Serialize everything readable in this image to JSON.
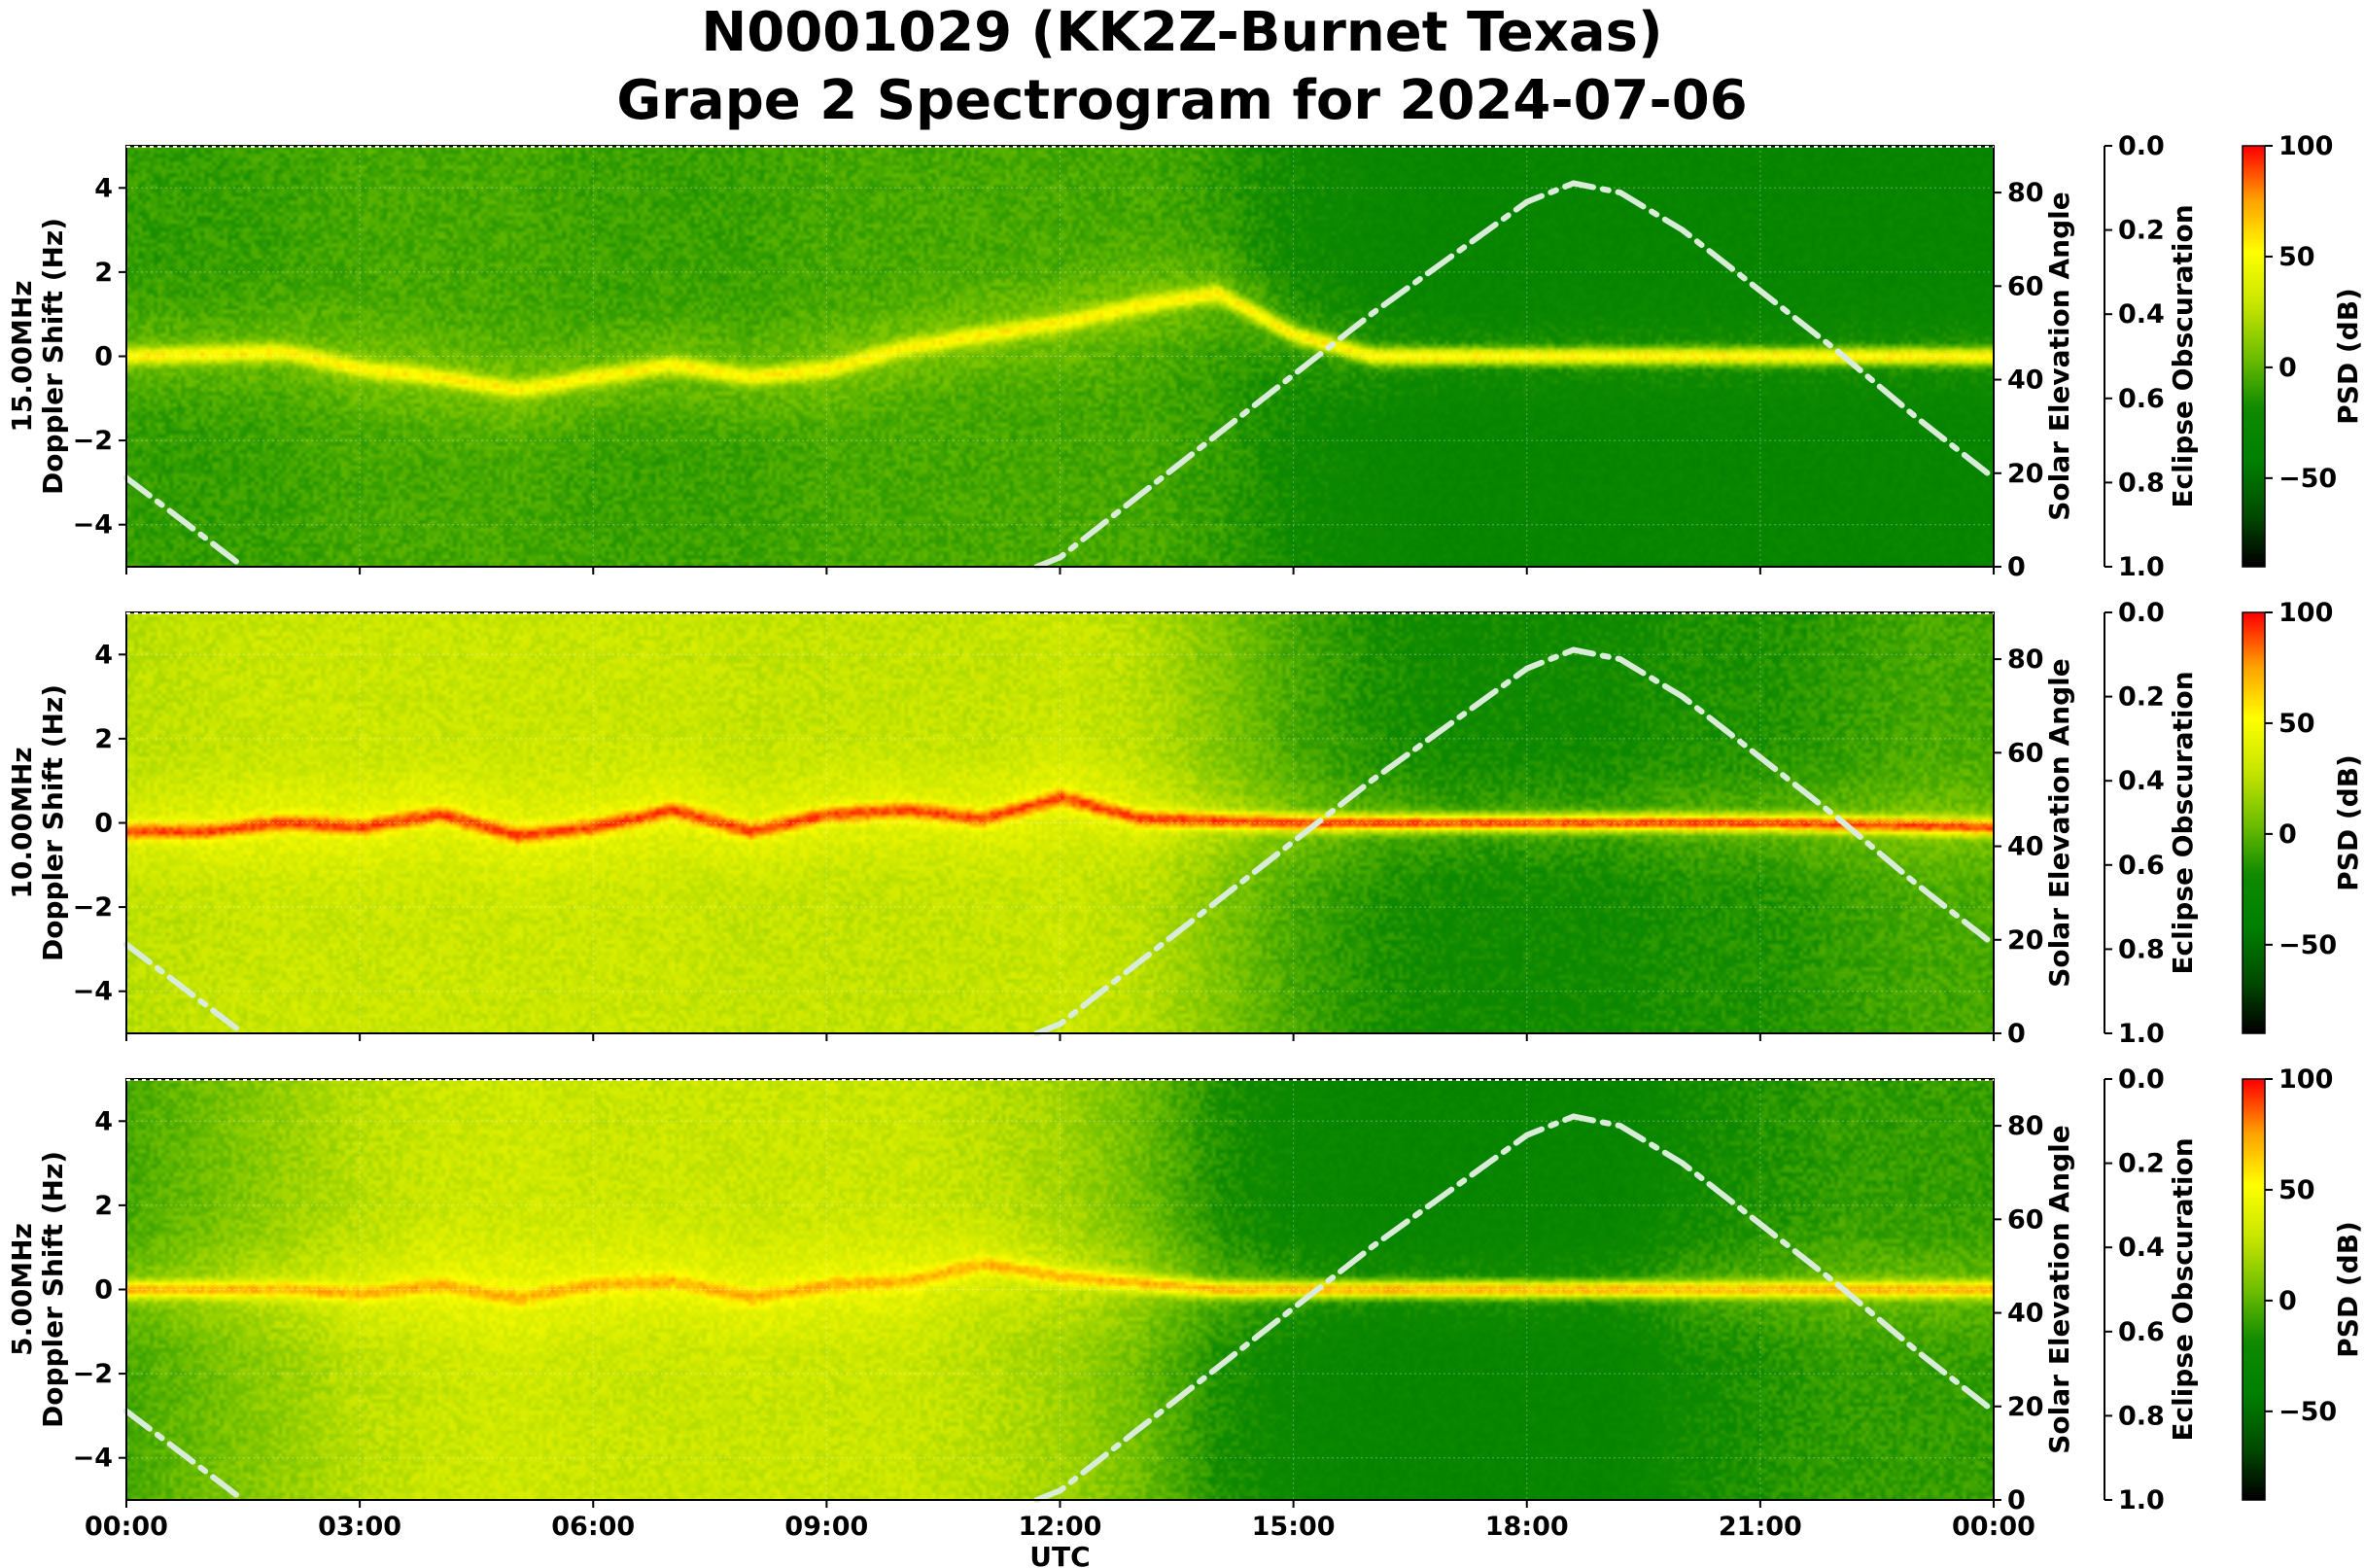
{
  "title_line1": "N0001029 (KK2Z-Burnet Texas)",
  "title_line2": "Grape 2 Spectrogram for 2024-07-06",
  "colors": {
    "psd_colormap": [
      "#000000",
      "#004d00",
      "#008000",
      "#0f8a00",
      "#6fbf00",
      "#c8e600",
      "#ffff00",
      "#ffa000",
      "#ff0000"
    ],
    "sun_curve": "#d8ecd8"
  },
  "chart_data": [
    {
      "type": "heatmap",
      "panel": "15.00MHz",
      "ylabel_line1": "15.00MHz",
      "ylabel_line2": "Doppler Shift (Hz)",
      "xlabel": "UTC",
      "x_ticks": [
        "00:00",
        "03:00",
        "06:00",
        "09:00",
        "12:00",
        "15:00",
        "18:00",
        "21:00",
        "00:00"
      ],
      "ylim": [
        -5,
        5
      ],
      "y_ticks": [
        4,
        2,
        0,
        -2,
        -4
      ],
      "right_axis_label": "Solar Elevation Angle",
      "right_axis_range": [
        0,
        90
      ],
      "right_axis_ticks": [
        0,
        20,
        40,
        60,
        80
      ],
      "eclipse_axis_label": "Eclipse Obscuration",
      "eclipse_axis_range": [
        0.0,
        1.0
      ],
      "eclipse_axis_ticks": [
        "0.0",
        "0.2",
        "0.4",
        "0.6",
        "0.8",
        "1.0"
      ],
      "colorbar_label": "PSD (dB)",
      "colorbar_range": [
        -90,
        100
      ],
      "colorbar_ticks": [
        100,
        50,
        0,
        -50
      ],
      "background_level_by_hour": [
        -10,
        -10,
        -8,
        -5,
        -5,
        -5,
        -8,
        -8,
        -8,
        -5,
        -5,
        -5,
        -5,
        -5,
        -10,
        -20,
        -25,
        -30,
        -30,
        -30,
        -30,
        -30,
        -30,
        -30
      ],
      "carrier_doppler_hz": [
        {
          "utc_hour": 0,
          "hz": 0.0
        },
        {
          "utc_hour": 1,
          "hz": 0.05
        },
        {
          "utc_hour": 2,
          "hz": 0.1
        },
        {
          "utc_hour": 3,
          "hz": -0.3
        },
        {
          "utc_hour": 4,
          "hz": -0.5
        },
        {
          "utc_hour": 5,
          "hz": -0.8
        },
        {
          "utc_hour": 6,
          "hz": -0.5
        },
        {
          "utc_hour": 7,
          "hz": -0.2
        },
        {
          "utc_hour": 8,
          "hz": -0.5
        },
        {
          "utc_hour": 9,
          "hz": -0.3
        },
        {
          "utc_hour": 10,
          "hz": 0.2
        },
        {
          "utc_hour": 11,
          "hz": 0.5
        },
        {
          "utc_hour": 12,
          "hz": 0.8
        },
        {
          "utc_hour": 13,
          "hz": 1.2
        },
        {
          "utc_hour": 14,
          "hz": 1.5
        },
        {
          "utc_hour": 15,
          "hz": 0.5
        },
        {
          "utc_hour": 16,
          "hz": 0.0
        },
        {
          "utc_hour": 18,
          "hz": 0.0
        },
        {
          "utc_hour": 20,
          "hz": 0.0
        },
        {
          "utc_hour": 22,
          "hz": 0.0
        },
        {
          "utc_hour": 24,
          "hz": 0.0
        }
      ],
      "carrier_level_db": 45
    },
    {
      "type": "heatmap",
      "panel": "10.00MHz",
      "ylabel_line1": "10.00MHz",
      "ylabel_line2": "Doppler Shift (Hz)",
      "xlabel": "UTC",
      "x_ticks": [
        "00:00",
        "03:00",
        "06:00",
        "09:00",
        "12:00",
        "15:00",
        "18:00",
        "21:00",
        "00:00"
      ],
      "ylim": [
        -5,
        5
      ],
      "y_ticks": [
        4,
        2,
        0,
        -2,
        -4
      ],
      "right_axis_label": "Solar Elevation Angle",
      "right_axis_range": [
        0,
        90
      ],
      "right_axis_ticks": [
        0,
        20,
        40,
        60,
        80
      ],
      "eclipse_axis_label": "Eclipse Obscuration",
      "eclipse_axis_range": [
        0.0,
        1.0
      ],
      "eclipse_axis_ticks": [
        "0.0",
        "0.2",
        "0.4",
        "0.6",
        "0.8",
        "1.0"
      ],
      "colorbar_label": "PSD (dB)",
      "colorbar_range": [
        -90,
        100
      ],
      "colorbar_ticks": [
        100,
        50,
        0,
        -50
      ],
      "background_level_by_hour": [
        25,
        28,
        30,
        30,
        30,
        30,
        30,
        30,
        28,
        28,
        28,
        28,
        30,
        25,
        10,
        -5,
        -15,
        -20,
        -20,
        -20,
        -15,
        -15,
        -10,
        -5
      ],
      "carrier_doppler_hz": [
        {
          "utc_hour": 0,
          "hz": -0.2
        },
        {
          "utc_hour": 1,
          "hz": -0.2
        },
        {
          "utc_hour": 2,
          "hz": 0.0
        },
        {
          "utc_hour": 3,
          "hz": -0.1
        },
        {
          "utc_hour": 4,
          "hz": 0.2
        },
        {
          "utc_hour": 5,
          "hz": -0.3
        },
        {
          "utc_hour": 6,
          "hz": -0.1
        },
        {
          "utc_hour": 7,
          "hz": 0.3
        },
        {
          "utc_hour": 8,
          "hz": -0.2
        },
        {
          "utc_hour": 9,
          "hz": 0.2
        },
        {
          "utc_hour": 10,
          "hz": 0.3
        },
        {
          "utc_hour": 11,
          "hz": 0.1
        },
        {
          "utc_hour": 12,
          "hz": 0.6
        },
        {
          "utc_hour": 13,
          "hz": 0.1
        },
        {
          "utc_hour": 15,
          "hz": 0.0
        },
        {
          "utc_hour": 18,
          "hz": 0.0
        },
        {
          "utc_hour": 21,
          "hz": 0.0
        },
        {
          "utc_hour": 24,
          "hz": -0.1
        }
      ],
      "carrier_level_db": 80
    },
    {
      "type": "heatmap",
      "panel": "5.00MHz",
      "ylabel_line1": "5.00MHz",
      "ylabel_line2": "Doppler Shift (Hz)",
      "xlabel": "UTC",
      "x_ticks": [
        "00:00",
        "03:00",
        "06:00",
        "09:00",
        "12:00",
        "15:00",
        "18:00",
        "21:00",
        "00:00"
      ],
      "ylim": [
        -5,
        5
      ],
      "y_ticks": [
        4,
        2,
        0,
        -2,
        -4
      ],
      "right_axis_label": "Solar Elevation Angle",
      "right_axis_range": [
        0,
        90
      ],
      "right_axis_ticks": [
        0,
        20,
        40,
        60,
        80
      ],
      "eclipse_axis_label": "Eclipse Obscuration",
      "eclipse_axis_range": [
        0.0,
        1.0
      ],
      "eclipse_axis_ticks": [
        "0.0",
        "0.2",
        "0.4",
        "0.6",
        "0.8",
        "1.0"
      ],
      "colorbar_label": "PSD (dB)",
      "colorbar_range": [
        -90,
        100
      ],
      "colorbar_ticks": [
        100,
        50,
        0,
        -50
      ],
      "background_level_by_hour": [
        -5,
        5,
        15,
        25,
        30,
        32,
        30,
        30,
        30,
        30,
        30,
        25,
        18,
        5,
        -15,
        -25,
        -30,
        -30,
        -30,
        -30,
        -20,
        -15,
        -10,
        -10
      ],
      "carrier_doppler_hz": [
        {
          "utc_hour": 0,
          "hz": 0.0
        },
        {
          "utc_hour": 2,
          "hz": 0.0
        },
        {
          "utc_hour": 3,
          "hz": -0.1
        },
        {
          "utc_hour": 4,
          "hz": 0.1
        },
        {
          "utc_hour": 5,
          "hz": -0.2
        },
        {
          "utc_hour": 6,
          "hz": 0.1
        },
        {
          "utc_hour": 7,
          "hz": 0.2
        },
        {
          "utc_hour": 8,
          "hz": -0.2
        },
        {
          "utc_hour": 9,
          "hz": 0.1
        },
        {
          "utc_hour": 10,
          "hz": 0.2
        },
        {
          "utc_hour": 11,
          "hz": 0.6
        },
        {
          "utc_hour": 12,
          "hz": 0.3
        },
        {
          "utc_hour": 14,
          "hz": 0.0
        },
        {
          "utc_hour": 18,
          "hz": 0.0
        },
        {
          "utc_hour": 24,
          "hz": 0.0
        }
      ],
      "carrier_level_db": 60
    }
  ],
  "solar_elevation_curve": [
    {
      "utc_hour": 0,
      "deg": 19
    },
    {
      "utc_hour": 1.5,
      "deg": 0
    },
    {
      "utc_hour": 11.7,
      "deg": 0
    },
    {
      "utc_hour": 12,
      "deg": 2
    },
    {
      "utc_hour": 13,
      "deg": 15
    },
    {
      "utc_hour": 14,
      "deg": 28
    },
    {
      "utc_hour": 15,
      "deg": 41
    },
    {
      "utc_hour": 16,
      "deg": 54
    },
    {
      "utc_hour": 17,
      "deg": 66
    },
    {
      "utc_hour": 18,
      "deg": 78
    },
    {
      "utc_hour": 18.6,
      "deg": 82
    },
    {
      "utc_hour": 19.2,
      "deg": 80
    },
    {
      "utc_hour": 20,
      "deg": 72
    },
    {
      "utc_hour": 21,
      "deg": 59
    },
    {
      "utc_hour": 22,
      "deg": 46
    },
    {
      "utc_hour": 23,
      "deg": 32
    },
    {
      "utc_hour": 24,
      "deg": 19
    }
  ]
}
